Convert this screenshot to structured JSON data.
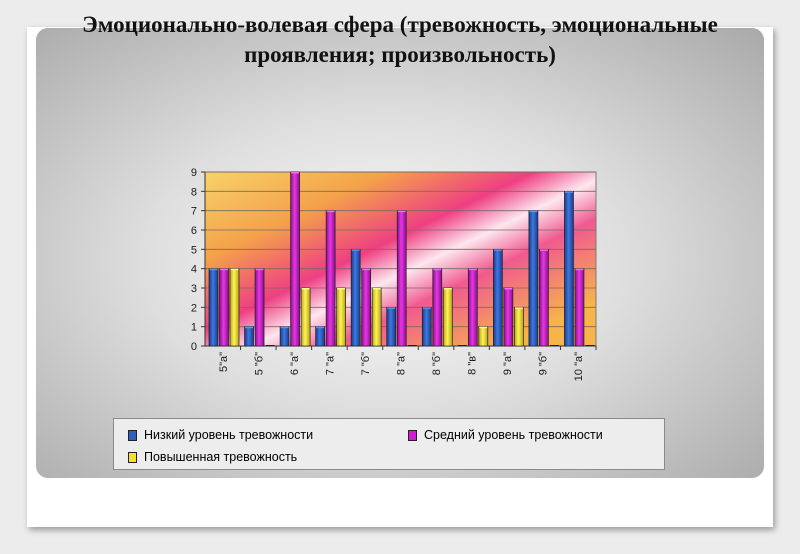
{
  "slide": {
    "title_line1": "Эмоционально-волевая сфера (тревожность, эмоциональные",
    "title_line2": "проявления; произвольность)"
  },
  "colors": {
    "series_low": "#2f5fc0",
    "series_mid": "#d21ed2",
    "series_high": "#f4e22a"
  },
  "chart_data": {
    "type": "bar",
    "title": "",
    "xlabel": "",
    "ylabel": "",
    "ylim": [
      0,
      9
    ],
    "yticks": [
      "0",
      "1",
      "2",
      "3",
      "4",
      "5",
      "6",
      "7",
      "8",
      "9"
    ],
    "grid": true,
    "legend_position": "bottom",
    "categories": [
      "5\"а\"",
      "5 \"б\"",
      "6 \"а\"",
      "7 \"а\"",
      "7 \"б\"",
      "8 \"а\"",
      "8 \"б\"",
      "8 \"в\"",
      "9 \"а\"",
      "9 \"б\"",
      "10 \"а\""
    ],
    "series": [
      {
        "name": "Низкий уровень тревожности",
        "values": [
          4,
          1,
          1,
          1,
          5,
          2,
          2,
          0,
          5,
          7,
          8
        ]
      },
      {
        "name": "Средний уровень тревожности",
        "values": [
          4,
          4,
          9,
          7,
          4,
          7,
          4,
          4,
          3,
          5,
          4
        ]
      },
      {
        "name": "Повышенная тревожность",
        "values": [
          4,
          0,
          3,
          3,
          3,
          0,
          3,
          1,
          2,
          0,
          0
        ]
      }
    ]
  }
}
